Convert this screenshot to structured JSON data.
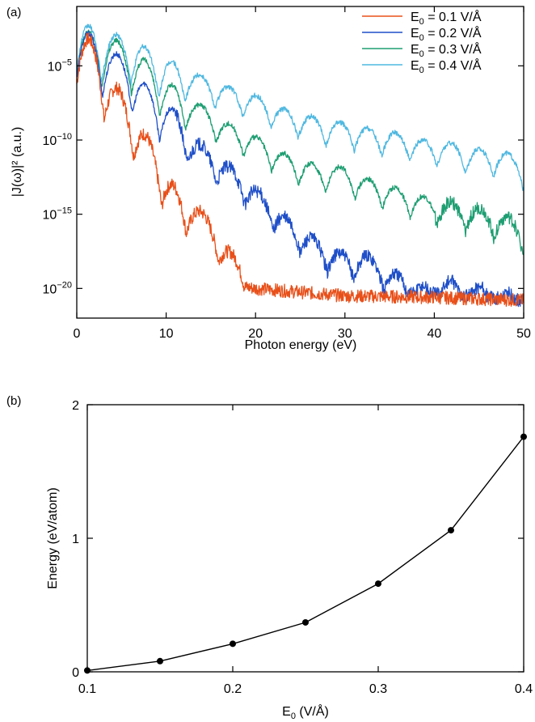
{
  "panels": {
    "a": {
      "label": "(a)"
    },
    "b": {
      "label": "(b)"
    }
  },
  "colors": {
    "series": [
      "#e8501a",
      "#1f4fc8",
      "#1e9e72",
      "#4fb8e0"
    ],
    "marker": "#000000",
    "axes": "#000000"
  },
  "chart_data": [
    {
      "type": "line",
      "xlabel": "Photon energy (eV)",
      "ylabel": "|J(ω)|² (a.u.)",
      "xlim": [
        0,
        50
      ],
      "ylim": [
        1e-22,
        0.1
      ],
      "yscale": "log",
      "xticks": [
        "0",
        "10",
        "20",
        "30",
        "40",
        "50"
      ],
      "yticks": [
        {
          "value": 1e-05,
          "base": "10",
          "exp": "−5"
        },
        {
          "value": 1e-10,
          "base": "10",
          "exp": "−10"
        },
        {
          "value": 1e-15,
          "base": "10",
          "exp": "−15"
        },
        {
          "value": 1e-20,
          "base": "10",
          "exp": "−20"
        }
      ],
      "legend_position": "top-right",
      "harmonic_spacing_eV": 3.1,
      "series": [
        {
          "name": "E0 = 0.1 V/Å",
          "legend": {
            "pre": "E",
            "sub": "0",
            "post": " = 0.1 V/Å"
          },
          "log10_peaks": [
            [
              1.3,
              -3.2
            ],
            [
              4.4,
              -6.5
            ],
            [
              7.5,
              -9.6
            ],
            [
              10.6,
              -13.0
            ],
            [
              13.7,
              -14.8
            ],
            [
              16.9,
              -17.5
            ]
          ],
          "log10_floor": [
            [
              0,
              -19.5
            ],
            [
              5,
              -19.0
            ],
            [
              10,
              -18.2
            ],
            [
              15,
              -19.6
            ],
            [
              20,
              -20.0
            ],
            [
              30,
              -20.5
            ],
            [
              40,
              -20.6
            ],
            [
              50,
              -20.8
            ]
          ]
        },
        {
          "name": "E0 = 0.2 V/Å",
          "legend": {
            "pre": "E",
            "sub": "0",
            "post": " = 0.2 V/Å"
          },
          "log10_peaks": [
            [
              1.3,
              -2.8
            ],
            [
              4.4,
              -4.2
            ],
            [
              7.5,
              -6.2
            ],
            [
              10.6,
              -7.9
            ],
            [
              13.7,
              -10.3
            ],
            [
              16.9,
              -11.8
            ],
            [
              20.0,
              -13.4
            ],
            [
              23.1,
              -15.2
            ],
            [
              26.2,
              -16.6
            ],
            [
              29.4,
              -17.6
            ],
            [
              32.5,
              -17.8
            ],
            [
              35.6,
              -19.0
            ],
            [
              38.7,
              -19.8
            ],
            [
              41.8,
              -19.5
            ],
            [
              45.0,
              -19.9
            ],
            [
              48.1,
              -20.3
            ]
          ],
          "log10_floor": [
            [
              0,
              -13.0
            ],
            [
              5,
              -15.5
            ],
            [
              10,
              -16.8
            ],
            [
              20,
              -18.8
            ],
            [
              30,
              -20.0
            ],
            [
              40,
              -20.3
            ],
            [
              50,
              -20.8
            ]
          ]
        },
        {
          "name": "E0 = 0.3 V/Å",
          "legend": {
            "pre": "E",
            "sub": "0",
            "post": " = 0.3 V/Å"
          },
          "log10_peaks": [
            [
              1.3,
              -2.7
            ],
            [
              4.4,
              -3.3
            ],
            [
              7.5,
              -4.6
            ],
            [
              10.6,
              -6.3
            ],
            [
              13.7,
              -7.6
            ],
            [
              16.9,
              -8.9
            ],
            [
              20.0,
              -9.8
            ],
            [
              23.1,
              -10.9
            ],
            [
              26.2,
              -11.6
            ],
            [
              29.4,
              -11.8
            ],
            [
              32.5,
              -12.6
            ],
            [
              35.6,
              -13.2
            ],
            [
              38.7,
              -13.8
            ],
            [
              41.8,
              -14.2
            ],
            [
              45.0,
              -14.6
            ],
            [
              48.1,
              -15.2
            ]
          ],
          "log10_floor": [
            [
              0,
              -11.3
            ],
            [
              5,
              -12.5
            ],
            [
              10,
              -14.0
            ],
            [
              20,
              -15.7
            ],
            [
              30,
              -16.4
            ],
            [
              40,
              -17.0
            ],
            [
              50,
              -18.0
            ]
          ]
        },
        {
          "name": "E0 = 0.4 V/Å",
          "legend": {
            "pre": "E",
            "sub": "0",
            "post": " = 0.4 V/Å"
          },
          "log10_peaks": [
            [
              1.3,
              -2.3
            ],
            [
              4.4,
              -2.9
            ],
            [
              7.5,
              -3.7
            ],
            [
              10.6,
              -4.7
            ],
            [
              13.7,
              -5.6
            ],
            [
              16.9,
              -6.4
            ],
            [
              20.0,
              -7.0
            ],
            [
              23.1,
              -7.9
            ],
            [
              26.2,
              -8.4
            ],
            [
              29.4,
              -8.8
            ],
            [
              32.5,
              -9.2
            ],
            [
              35.6,
              -9.5
            ],
            [
              38.7,
              -10.0
            ],
            [
              41.8,
              -10.2
            ],
            [
              45.0,
              -10.6
            ],
            [
              48.1,
              -10.9
            ]
          ],
          "log10_floor": [
            [
              0,
              -8.5
            ],
            [
              5,
              -9.8
            ],
            [
              10,
              -10.7
            ],
            [
              20,
              -12.0
            ],
            [
              30,
              -12.8
            ],
            [
              40,
              -13.2
            ],
            [
              50,
              -14.2
            ]
          ]
        }
      ]
    },
    {
      "type": "line",
      "xlabel": {
        "pre": "E",
        "sub": "0",
        "post": " (V/Å)"
      },
      "ylabel": "Energy (eV/atom)",
      "xlim": [
        0.1,
        0.4
      ],
      "ylim": [
        0,
        2
      ],
      "xticks": [
        "0.1",
        "0.2",
        "0.3",
        "0.4"
      ],
      "yticks": [
        "0",
        "1",
        "2"
      ],
      "x": [
        0.1,
        0.15,
        0.2,
        0.25,
        0.3,
        0.35,
        0.4
      ],
      "y": [
        0.01,
        0.08,
        0.21,
        0.37,
        0.66,
        1.06,
        1.76
      ]
    }
  ]
}
